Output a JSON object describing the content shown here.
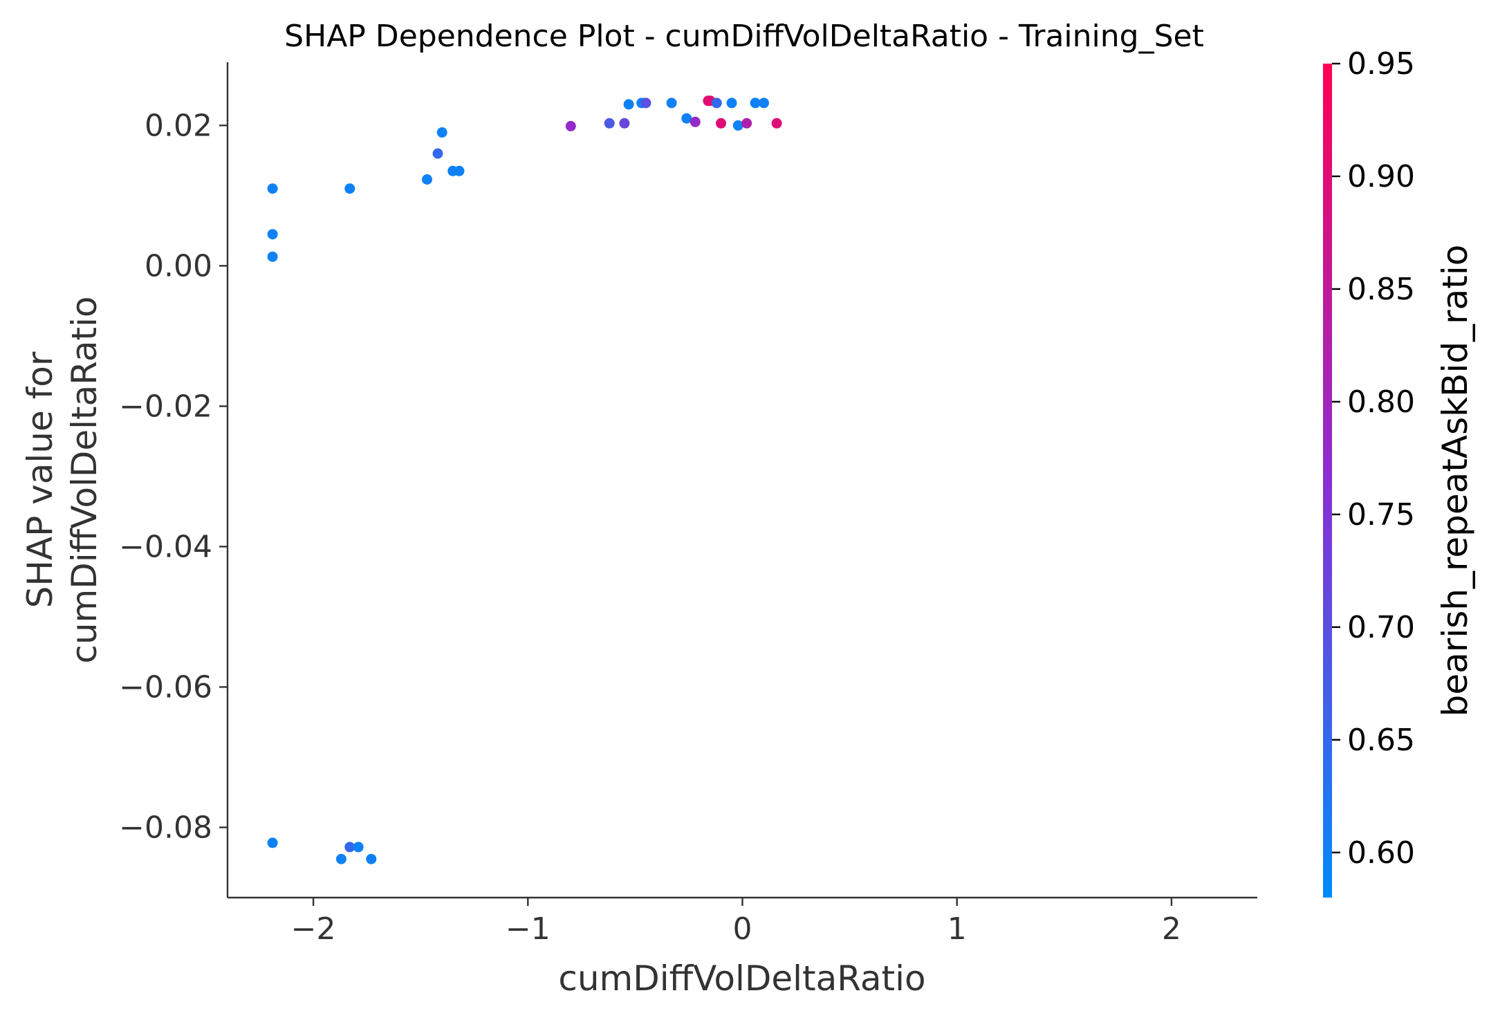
{
  "chart_data": {
    "type": "scatter",
    "title": "SHAP Dependence Plot - cumDiffVolDeltaRatio - Training_Set",
    "xlabel": "cumDiffVolDeltaRatio",
    "ylabel_lines": [
      "SHAP value for",
      "cumDiffVolDeltaRatio"
    ],
    "xlim": [
      -2.4,
      2.4
    ],
    "ylim": [
      -0.09,
      0.029
    ],
    "x_ticks": [
      -2,
      -1,
      0,
      1,
      2
    ],
    "x_tick_labels": [
      "−2",
      "−1",
      "0",
      "1",
      "2"
    ],
    "y_ticks": [
      0.02,
      0.0,
      -0.02,
      -0.04,
      -0.06,
      -0.08
    ],
    "y_tick_labels": [
      "0.02",
      "0.00",
      "−0.02",
      "−0.04",
      "−0.06",
      "−0.08"
    ],
    "grid": false,
    "colorbar": {
      "label": "bearish_repeatAskBid_ratio",
      "range": [
        0.58,
        0.95
      ],
      "ticks": [
        0.95,
        0.9,
        0.85,
        0.8,
        0.75,
        0.7,
        0.65,
        0.6
      ],
      "tick_labels": [
        "0.95",
        "0.90",
        "0.85",
        "0.80",
        "0.75",
        "0.70",
        "0.65",
        "0.60"
      ],
      "colormap_low": "#008bfb",
      "colormap_mid": "#8a2ed3",
      "colormap_high": "#ff0052"
    },
    "series": [
      {
        "points": [
          [
            -2.19,
            0.011,
            0.6
          ],
          [
            -2.19,
            0.0045,
            0.6
          ],
          [
            -2.19,
            0.0013,
            0.6
          ],
          [
            -1.83,
            0.011,
            0.6
          ],
          [
            -1.47,
            0.0123,
            0.6
          ],
          [
            -1.42,
            0.016,
            0.65
          ],
          [
            -1.4,
            0.019,
            0.6
          ],
          [
            -1.35,
            0.0135,
            0.6
          ],
          [
            -1.32,
            0.0135,
            0.6
          ],
          [
            -0.8,
            0.0199,
            0.78
          ],
          [
            -0.62,
            0.0203,
            0.68
          ],
          [
            -0.55,
            0.0203,
            0.72
          ],
          [
            -0.53,
            0.023,
            0.6
          ],
          [
            -0.47,
            0.0232,
            0.6
          ],
          [
            -0.45,
            0.0232,
            0.7
          ],
          [
            -0.33,
            0.0232,
            0.6
          ],
          [
            -0.26,
            0.021,
            0.6
          ],
          [
            -0.22,
            0.0205,
            0.78
          ],
          [
            -0.16,
            0.0235,
            0.92
          ],
          [
            -0.15,
            0.0235,
            0.9
          ],
          [
            -0.12,
            0.0232,
            0.65
          ],
          [
            -0.1,
            0.0203,
            0.9
          ],
          [
            -0.05,
            0.0232,
            0.6
          ],
          [
            -0.02,
            0.02,
            0.6
          ],
          [
            0.02,
            0.0203,
            0.82
          ],
          [
            0.06,
            0.0232,
            0.6
          ],
          [
            0.1,
            0.0232,
            0.6
          ],
          [
            0.16,
            0.0203,
            0.9
          ],
          [
            -2.19,
            -0.0822,
            0.6
          ],
          [
            -1.87,
            -0.0845,
            0.6
          ],
          [
            -1.83,
            -0.0828,
            0.65
          ],
          [
            -1.79,
            -0.0828,
            0.6
          ],
          [
            -1.73,
            -0.0845,
            0.6
          ]
        ]
      }
    ]
  }
}
